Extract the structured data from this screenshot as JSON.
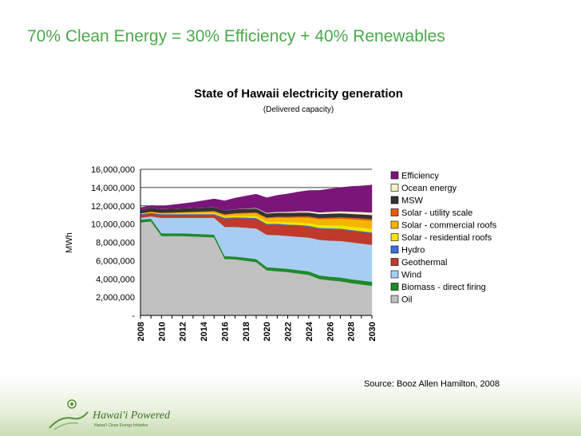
{
  "slide": {
    "title": "70% Clean Energy = 30% Efficiency + 40% Renewables",
    "source": "Source: Booz Allen Hamilton, 2008",
    "logo_text": "Hawai'i Powered",
    "logo_tagline": "Hawai'i Clean Energy Initiative"
  },
  "colors": {
    "title": "#4aa84b",
    "oil": "#c0c0c0",
    "biomass": "#1f8a2c",
    "wind": "#a8cdf2",
    "geothermal": "#c0392b",
    "hydro": "#3a6fd8",
    "solar_residential": "#f2e600",
    "solar_commercial": "#f5b400",
    "solar_utility": "#e85a12",
    "msw": "#333333",
    "ocean": "#f6f0c8",
    "efficiency": "#7a167a"
  },
  "chart_data": {
    "type": "area",
    "stacked": true,
    "title": "State of Hawaii electricity generation",
    "subtitle": "(Delivered capacity)",
    "ylabel": "MWh",
    "xlabel": "",
    "ylim": [
      0,
      16000000
    ],
    "yticks": [
      0,
      2000000,
      4000000,
      6000000,
      8000000,
      10000000,
      12000000,
      14000000,
      16000000
    ],
    "ytick_labels": [
      "-",
      "2,000,000",
      "4,000,000",
      "6,000,000",
      "8,000,000",
      "10,000,000",
      "12,000,000",
      "14,000,000",
      "16,000,000"
    ],
    "xtick_labels": [
      "2008",
      "2010",
      "2012",
      "2014",
      "2016",
      "2018",
      "2020",
      "2022",
      "2024",
      "2026",
      "2028",
      "2030"
    ],
    "grid": true,
    "legend_position": "right",
    "x": [
      2008,
      2009,
      2010,
      2011,
      2012,
      2013,
      2014,
      2015,
      2016,
      2017,
      2018,
      2019,
      2020,
      2021,
      2022,
      2023,
      2024,
      2025,
      2026,
      2027,
      2028,
      2029,
      2030
    ],
    "series": [
      {
        "name": "Oil",
        "color": "#c0c0c0",
        "values": [
          10200000,
          10300000,
          8700000,
          8700000,
          8700000,
          8650000,
          8600000,
          8550000,
          6200000,
          6150000,
          6000000,
          5850000,
          4950000,
          4850000,
          4750000,
          4600000,
          4450000,
          4000000,
          3850000,
          3750000,
          3550000,
          3400000,
          3250000
        ]
      },
      {
        "name": "Biomass - direct firing",
        "color": "#1f8a2c",
        "values": [
          300000,
          300000,
          300000,
          300000,
          300000,
          300000,
          300000,
          300000,
          300000,
          300000,
          320000,
          330000,
          340000,
          350000,
          360000,
          370000,
          380000,
          390000,
          400000,
          410000,
          420000,
          430000,
          440000
        ]
      },
      {
        "name": "Wind",
        "color": "#a8cdf2",
        "values": [
          200000,
          250000,
          1700000,
          1700000,
          1700000,
          1750000,
          1800000,
          1850000,
          3200000,
          3250000,
          3300000,
          3350000,
          3550000,
          3600000,
          3600000,
          3650000,
          3700000,
          3900000,
          3950000,
          4000000,
          4050000,
          4050000,
          4050000
        ]
      },
      {
        "name": "Geothermal",
        "color": "#c0392b",
        "values": [
          300000,
          300000,
          300000,
          300000,
          300000,
          300000,
          300000,
          300000,
          900000,
          950000,
          1000000,
          1050000,
          1100000,
          1150000,
          1150000,
          1200000,
          1200000,
          1200000,
          1250000,
          1250000,
          1250000,
          1250000,
          1250000
        ]
      },
      {
        "name": "Hydro",
        "color": "#3a6fd8",
        "values": [
          100000,
          100000,
          100000,
          100000,
          100000,
          100000,
          100000,
          100000,
          100000,
          100000,
          100000,
          100000,
          100000,
          100000,
          100000,
          100000,
          100000,
          100000,
          100000,
          100000,
          100000,
          100000,
          100000
        ]
      },
      {
        "name": "Solar - residential roofs",
        "color": "#f2e600",
        "values": [
          50000,
          60000,
          70000,
          80000,
          90000,
          100000,
          110000,
          120000,
          130000,
          150000,
          170000,
          190000,
          210000,
          230000,
          250000,
          270000,
          290000,
          310000,
          330000,
          350000,
          370000,
          390000,
          400000
        ]
      },
      {
        "name": "Solar - commercial roofs",
        "color": "#f5b400",
        "values": [
          50000,
          60000,
          80000,
          100000,
          120000,
          140000,
          160000,
          180000,
          200000,
          250000,
          300000,
          350000,
          400000,
          450000,
          500000,
          550000,
          600000,
          650000,
          700000,
          750000,
          800000,
          850000,
          900000
        ]
      },
      {
        "name": "Solar - utility scale",
        "color": "#e85a12",
        "values": [
          0,
          0,
          0,
          0,
          10000,
          20000,
          30000,
          40000,
          50000,
          60000,
          70000,
          80000,
          90000,
          100000,
          110000,
          120000,
          130000,
          140000,
          150000,
          160000,
          170000,
          180000,
          190000
        ]
      },
      {
        "name": "MSW",
        "color": "#333333",
        "values": [
          400000,
          420000,
          420000,
          420000,
          420000,
          420000,
          420000,
          420000,
          420000,
          420000,
          420000,
          420000,
          420000,
          420000,
          420000,
          420000,
          420000,
          420000,
          420000,
          420000,
          420000,
          420000,
          420000
        ]
      },
      {
        "name": "Ocean energy",
        "color": "#f6f0c8",
        "values": [
          0,
          0,
          0,
          0,
          0,
          0,
          0,
          0,
          0,
          20000,
          40000,
          60000,
          80000,
          100000,
          120000,
          140000,
          160000,
          180000,
          200000,
          220000,
          240000,
          260000,
          280000
        ]
      },
      {
        "name": "Efficiency",
        "color": "#7a167a",
        "values": [
          200000,
          250000,
          300000,
          400000,
          500000,
          600000,
          750000,
          900000,
          1050000,
          1200000,
          1350000,
          1500000,
          1650000,
          1800000,
          1950000,
          2100000,
          2250000,
          2400000,
          2500000,
          2600000,
          2750000,
          2850000,
          3000000
        ]
      }
    ]
  }
}
